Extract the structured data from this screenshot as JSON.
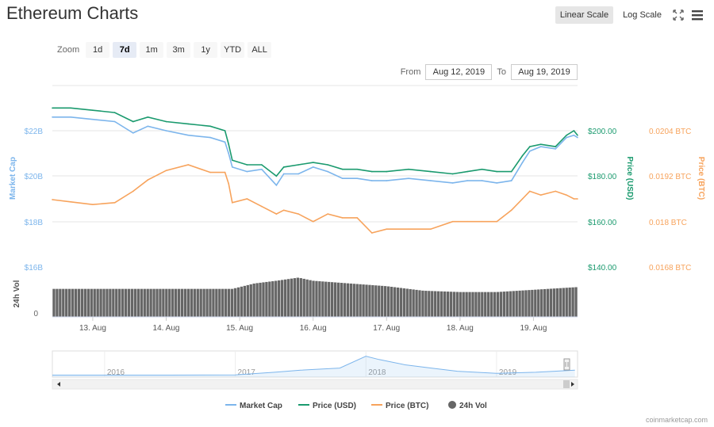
{
  "title": "Ethereum Charts",
  "toolbar": {
    "linear_label": "Linear Scale",
    "log_label": "Log Scale",
    "fullscreen_icon": "fullscreen-icon",
    "menu_icon": "hamburger-menu-icon"
  },
  "zoom": {
    "label": "Zoom",
    "options": [
      "1d",
      "7d",
      "1m",
      "3m",
      "1y",
      "YTD",
      "ALL"
    ],
    "active": "7d"
  },
  "range": {
    "from_label": "From",
    "from_value": "Aug 12, 2019",
    "to_label": "To",
    "to_value": "Aug 19, 2019"
  },
  "credit": "coinmarketcap.com",
  "colors": {
    "market_cap": "#7cb5ec",
    "price_usd": "#1a9a6e",
    "price_btc": "#f7a35c",
    "volume": "#666666",
    "grid": "#e6e6e6"
  },
  "chart_data": {
    "type": "line",
    "x_tick_labels": [
      "13. Aug",
      "14. Aug",
      "15. Aug",
      "16. Aug",
      "17. Aug",
      "18. Aug",
      "19. Aug"
    ],
    "axes": {
      "market_cap": {
        "label": "Market Cap",
        "ticks": [
          "$16B",
          "$18B",
          "$20B",
          "$22B"
        ],
        "range": [
          16,
          22
        ]
      },
      "price_usd": {
        "label": "Price (USD)",
        "ticks": [
          "$140.00",
          "$160.00",
          "$180.00",
          "$200.00"
        ],
        "range": [
          140,
          200
        ]
      },
      "price_btc": {
        "label": "Price (BTC)",
        "ticks": [
          "0.0168 BTC",
          "0.018 BTC",
          "0.0192 BTC",
          "0.0204 BTC"
        ],
        "range": [
          0.0168,
          0.0204
        ]
      },
      "volume": {
        "label": "24h Vol",
        "ticks": [
          "0"
        ]
      }
    },
    "x_range": [
      12.45,
      19.6
    ],
    "series": [
      {
        "name": "Market Cap",
        "key": "market_cap",
        "unit": "B USD",
        "x": [
          12.45,
          12.7,
          13.0,
          13.3,
          13.55,
          13.75,
          14.0,
          14.3,
          14.6,
          14.8,
          14.85,
          14.9,
          15.1,
          15.3,
          15.5,
          15.6,
          15.8,
          16.0,
          16.2,
          16.4,
          16.6,
          16.8,
          17.0,
          17.3,
          17.6,
          17.9,
          18.1,
          18.3,
          18.5,
          18.7,
          18.85,
          18.95,
          19.1,
          19.3,
          19.45,
          19.55,
          19.6
        ],
        "values": [
          22.6,
          22.6,
          22.5,
          22.4,
          21.9,
          22.2,
          22.0,
          21.8,
          21.7,
          21.5,
          21.0,
          20.4,
          20.2,
          20.3,
          19.6,
          20.1,
          20.1,
          20.4,
          20.2,
          19.9,
          19.9,
          19.8,
          19.8,
          19.9,
          19.8,
          19.7,
          19.8,
          19.8,
          19.7,
          19.8,
          20.6,
          21.1,
          21.3,
          21.2,
          21.7,
          21.8,
          21.7
        ]
      },
      {
        "name": "Price (USD)",
        "key": "price_usd",
        "unit": "USD",
        "x": [
          12.45,
          12.7,
          13.0,
          13.3,
          13.55,
          13.75,
          14.0,
          14.3,
          14.6,
          14.8,
          14.85,
          14.9,
          15.1,
          15.3,
          15.5,
          15.6,
          15.8,
          16.0,
          16.2,
          16.4,
          16.6,
          16.8,
          17.0,
          17.3,
          17.6,
          17.9,
          18.1,
          18.3,
          18.5,
          18.7,
          18.85,
          18.95,
          19.1,
          19.3,
          19.45,
          19.55,
          19.6
        ],
        "values": [
          210,
          210,
          209,
          208,
          204,
          206,
          204,
          203,
          202,
          200,
          194,
          187,
          185,
          185,
          180,
          184,
          185,
          186,
          185,
          183,
          183,
          182,
          182,
          183,
          182,
          181,
          182,
          183,
          182,
          182,
          189,
          193,
          194,
          193,
          198,
          200,
          198
        ]
      },
      {
        "name": "Price (BTC)",
        "key": "price_btc",
        "unit": "BTC",
        "x": [
          12.45,
          12.7,
          13.0,
          13.3,
          13.55,
          13.75,
          14.0,
          14.3,
          14.6,
          14.8,
          14.85,
          14.9,
          15.1,
          15.3,
          15.5,
          15.6,
          15.8,
          16.0,
          16.2,
          16.4,
          16.6,
          16.8,
          17.0,
          17.3,
          17.6,
          17.9,
          18.1,
          18.3,
          18.5,
          18.7,
          18.85,
          18.95,
          19.1,
          19.3,
          19.45,
          19.55,
          19.6
        ],
        "values": [
          0.01858,
          0.01852,
          0.01845,
          0.0185,
          0.0188,
          0.0191,
          0.01935,
          0.0195,
          0.0193,
          0.0193,
          0.019,
          0.0185,
          0.0186,
          0.0184,
          0.0182,
          0.0183,
          0.0182,
          0.018,
          0.0182,
          0.0181,
          0.0181,
          0.0177,
          0.0178,
          0.0178,
          0.0178,
          0.018,
          0.018,
          0.018,
          0.018,
          0.0183,
          0.0186,
          0.0188,
          0.0187,
          0.0188,
          0.0187,
          0.0186,
          0.0186
        ]
      },
      {
        "name": "24h Vol",
        "key": "volume",
        "unit": "relative",
        "x": [
          12.45,
          13.0,
          13.5,
          14.0,
          14.5,
          14.9,
          15.2,
          15.5,
          15.8,
          16.0,
          16.5,
          17.0,
          17.5,
          18.0,
          18.5,
          19.0,
          19.6
        ],
        "values": [
          0.62,
          0.62,
          0.62,
          0.62,
          0.62,
          0.62,
          0.74,
          0.8,
          0.87,
          0.8,
          0.74,
          0.68,
          0.58,
          0.55,
          0.55,
          0.6,
          0.66
        ]
      }
    ],
    "navigator": {
      "year_labels": [
        "2016",
        "2017",
        "2018",
        "2019"
      ],
      "x": [
        2015.6,
        2016.0,
        2016.5,
        2017.0,
        2017.3,
        2017.5,
        2017.8,
        2018.0,
        2018.1,
        2018.3,
        2018.5,
        2018.7,
        2019.0,
        2019.3,
        2019.6
      ],
      "values": [
        0.02,
        0.02,
        0.02,
        0.03,
        0.15,
        0.25,
        0.35,
        0.9,
        0.75,
        0.5,
        0.35,
        0.2,
        0.1,
        0.15,
        0.25
      ]
    },
    "legend": {
      "position": "bottom-center",
      "items": [
        "Market Cap",
        "Price (USD)",
        "Price (BTC)",
        "24h Vol"
      ]
    },
    "grid": true
  }
}
